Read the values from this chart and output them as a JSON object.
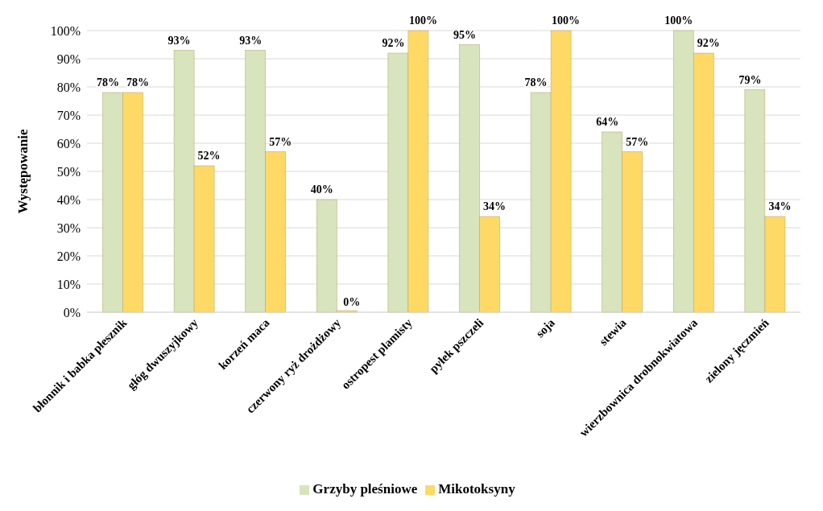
{
  "chart_data": {
    "type": "bar",
    "ylabel": "Występowanie",
    "categories": [
      "błonnik i babka płesznik",
      "głóg dwuszyjkowy",
      "korzeń maca",
      "czerwony ryż drożdżowy",
      "ostropest plamisty",
      "pyłek pszczeli",
      "soja",
      "stewia",
      "wierzbownica drobnokwiatowa",
      "zielony jęczmień"
    ],
    "series": [
      {
        "name": "Grzyby pleśniowe",
        "color": "#d7e4bd",
        "values": [
          78,
          93,
          93,
          40,
          92,
          95,
          78,
          64,
          100,
          79
        ],
        "value_labels": [
          "78%",
          "93%",
          "93%",
          "40%",
          "92%",
          "95%",
          "78%",
          "64%",
          "100%",
          "79%"
        ]
      },
      {
        "name": "Mikotoksyny",
        "color": "#ffd966",
        "values": [
          78,
          52,
          57,
          0,
          100,
          34,
          100,
          57,
          92,
          34
        ],
        "value_labels": [
          "78%",
          "52%",
          "57%",
          "0%",
          "100%",
          "34%",
          "100%",
          "57%",
          "92%",
          "34%"
        ]
      }
    ],
    "ylim": [
      0,
      100
    ],
    "yticks": [
      {
        "value": 0,
        "label": "0%"
      },
      {
        "value": 10,
        "label": "10%"
      },
      {
        "value": 20,
        "label": "20%"
      },
      {
        "value": 30,
        "label": "30%"
      },
      {
        "value": 40,
        "label": "40%"
      },
      {
        "value": 50,
        "label": "50%"
      },
      {
        "value": 60,
        "label": "60%"
      },
      {
        "value": 70,
        "label": "70%"
      },
      {
        "value": 80,
        "label": "80%"
      },
      {
        "value": 90,
        "label": "90%"
      },
      {
        "value": 100,
        "label": "100%"
      }
    ],
    "grid": "y",
    "legend": "bottom"
  }
}
